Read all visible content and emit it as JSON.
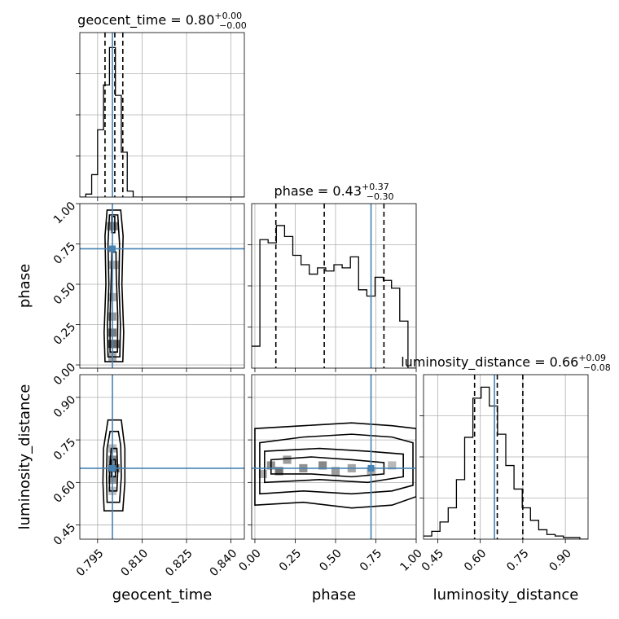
{
  "colors": {
    "truth": "#4682b4",
    "line": "#000000",
    "grid": "#b0b0b0"
  },
  "chart_data": {
    "type": "corner",
    "grid": true,
    "parameters": [
      "geocent_time",
      "phase",
      "luminosity_distance"
    ],
    "truth": {
      "geocent_time": 0.8,
      "phase": 0.72,
      "luminosity_distance": 0.65
    },
    "axes": {
      "geocent_time": {
        "range": [
          0.789,
          0.8445
        ],
        "ticks": [
          0.795,
          0.81,
          0.825,
          0.84
        ],
        "tick_labels": [
          "0.795",
          "0.810",
          "0.825",
          "0.840"
        ],
        "label": "geocent_time"
      },
      "phase": {
        "range": [
          -0.02,
          1.0
        ],
        "ticks": [
          0.0,
          0.25,
          0.5,
          0.75,
          1.0
        ],
        "tick_labels": [
          "0.00",
          "0.25",
          "0.50",
          "0.75",
          "1.00"
        ],
        "label": "phase"
      },
      "luminosity_distance": {
        "range": [
          0.4,
          0.98
        ],
        "ticks": [
          0.45,
          0.6,
          0.75,
          0.9
        ],
        "tick_labels": [
          "0.45",
          "0.60",
          "0.75",
          "0.90"
        ],
        "label": "luminosity_distance"
      }
    },
    "marginals": [
      {
        "param": "geocent_time",
        "title_main": "geocent_time = 0.80",
        "title_sup": "+0.00",
        "title_sub": "−0.00",
        "bin_edges": [
          0.789,
          0.791,
          0.793,
          0.795,
          0.797,
          0.799,
          0.801,
          0.803,
          0.805,
          0.807,
          0.809,
          0.811,
          0.813,
          0.815,
          0.817,
          0.819,
          0.821,
          0.823,
          0.825,
          0.827,
          0.829,
          0.831,
          0.833,
          0.835,
          0.837,
          0.839,
          0.841,
          0.843,
          0.8445
        ],
        "counts": [
          0,
          0.02,
          0.15,
          0.45,
          0.75,
          1.0,
          0.68,
          0.3,
          0.04,
          0,
          0,
          0,
          0,
          0,
          0,
          0,
          0,
          0,
          0,
          0,
          0,
          0,
          0,
          0,
          0,
          0,
          0,
          0
        ],
        "ymax": 1.1,
        "quantiles": [
          0.7975,
          0.8008,
          0.8035
        ]
      },
      {
        "param": "phase",
        "title_main": "phase = 0.43",
        "title_sup": "+0.37",
        "title_sub": "−0.30",
        "bin_edges": [
          -0.02,
          0.031,
          0.082,
          0.133,
          0.184,
          0.235,
          0.286,
          0.337,
          0.388,
          0.439,
          0.49,
          0.541,
          0.592,
          0.643,
          0.694,
          0.745,
          0.796,
          0.847,
          0.898,
          0.949,
          1.0
        ],
        "counts": [
          0.14,
          0.82,
          0.8,
          0.91,
          0.84,
          0.72,
          0.66,
          0.6,
          0.64,
          0.62,
          0.66,
          0.64,
          0.71,
          0.5,
          0.46,
          0.58,
          0.56,
          0.51,
          0.3,
          0.0
        ],
        "ymax": 1.05,
        "quantiles": [
          0.13,
          0.43,
          0.8
        ]
      },
      {
        "param": "luminosity_distance",
        "title_main": "luminosity_distance = 0.66",
        "title_sup": "+0.09",
        "title_sub": "−0.08",
        "bin_edges": [
          0.4,
          0.429,
          0.458,
          0.487,
          0.516,
          0.545,
          0.574,
          0.603,
          0.632,
          0.661,
          0.69,
          0.719,
          0.748,
          0.777,
          0.806,
          0.835,
          0.864,
          0.893,
          0.922,
          0.951,
          0.98
        ],
        "counts": [
          0.02,
          0.05,
          0.11,
          0.2,
          0.38,
          0.65,
          0.9,
          0.97,
          0.85,
          0.67,
          0.47,
          0.32,
          0.2,
          0.12,
          0.06,
          0.03,
          0.02,
          0.01,
          0.01,
          0
        ],
        "ymax": 1.05,
        "quantiles": [
          0.58,
          0.66,
          0.75
        ]
      }
    ],
    "joint_panels": [
      {
        "x": "geocent_time",
        "y": "phase",
        "density_cells": [
          {
            "x": 0.7995,
            "y": 0.86,
            "v": 0.55
          },
          {
            "x": 0.8005,
            "y": 0.86,
            "v": 0.6
          },
          {
            "x": 0.8,
            "y": 0.62,
            "v": 0.45
          },
          {
            "x": 0.801,
            "y": 0.62,
            "v": 0.4
          },
          {
            "x": 0.8,
            "y": 0.42,
            "v": 0.4
          },
          {
            "x": 0.8,
            "y": 0.3,
            "v": 0.5
          },
          {
            "x": 0.8,
            "y": 0.2,
            "v": 0.65
          },
          {
            "x": 0.8,
            "y": 0.13,
            "v": 0.85
          },
          {
            "x": 0.801,
            "y": 0.13,
            "v": 0.75
          },
          {
            "x": 0.8,
            "y": 0.05,
            "v": 0.45
          }
        ],
        "contours": [
          [
            [
              0.7975,
              0.02
            ],
            [
              0.8035,
              0.02
            ],
            [
              0.8038,
              0.2
            ],
            [
              0.8032,
              0.5
            ],
            [
              0.8036,
              0.8
            ],
            [
              0.8028,
              0.96
            ],
            [
              0.7982,
              0.96
            ],
            [
              0.7975,
              0.8
            ],
            [
              0.7978,
              0.5
            ],
            [
              0.7972,
              0.2
            ]
          ],
          [
            [
              0.7985,
              0.05
            ],
            [
              0.8025,
              0.05
            ],
            [
              0.8027,
              0.25
            ],
            [
              0.8022,
              0.5
            ],
            [
              0.8024,
              0.75
            ],
            [
              0.8018,
              0.93
            ],
            [
              0.799,
              0.93
            ],
            [
              0.7985,
              0.75
            ],
            [
              0.7988,
              0.5
            ],
            [
              0.7983,
              0.25
            ]
          ],
          [
            [
              0.7992,
              0.08
            ],
            [
              0.8017,
              0.08
            ],
            [
              0.8018,
              0.3
            ],
            [
              0.8013,
              0.55
            ],
            [
              0.8012,
              0.7
            ],
            [
              0.7998,
              0.7
            ],
            [
              0.7996,
              0.55
            ],
            [
              0.7992,
              0.3
            ]
          ],
          [
            [
              0.7998,
              0.82
            ],
            [
              0.8008,
              0.82
            ],
            [
              0.8008,
              0.92
            ],
            [
              0.7998,
              0.92
            ]
          ]
        ]
      },
      {
        "x": "geocent_time",
        "y": "luminosity_distance",
        "density_cells": [
          {
            "x": 0.8,
            "y": 0.72,
            "v": 0.35
          },
          {
            "x": 0.8,
            "y": 0.68,
            "v": 0.6
          },
          {
            "x": 0.8,
            "y": 0.65,
            "v": 0.8
          },
          {
            "x": 0.801,
            "y": 0.65,
            "v": 0.7
          },
          {
            "x": 0.8,
            "y": 0.61,
            "v": 0.55
          },
          {
            "x": 0.8,
            "y": 0.57,
            "v": 0.3
          }
        ],
        "contours": [
          [
            [
              0.7972,
              0.5
            ],
            [
              0.8035,
              0.5
            ],
            [
              0.8042,
              0.6
            ],
            [
              0.8042,
              0.72
            ],
            [
              0.803,
              0.82
            ],
            [
              0.7985,
              0.82
            ],
            [
              0.797,
              0.72
            ],
            [
              0.7968,
              0.6
            ]
          ],
          [
            [
              0.7982,
              0.53
            ],
            [
              0.8024,
              0.53
            ],
            [
              0.803,
              0.62
            ],
            [
              0.8028,
              0.73
            ],
            [
              0.802,
              0.78
            ],
            [
              0.7992,
              0.78
            ],
            [
              0.7982,
              0.72
            ],
            [
              0.798,
              0.62
            ]
          ],
          [
            [
              0.799,
              0.57
            ],
            [
              0.8015,
              0.57
            ],
            [
              0.8018,
              0.64
            ],
            [
              0.8015,
              0.72
            ],
            [
              0.7996,
              0.72
            ],
            [
              0.799,
              0.64
            ]
          ],
          [
            [
              0.7996,
              0.62
            ],
            [
              0.801,
              0.62
            ],
            [
              0.801,
              0.68
            ],
            [
              0.7996,
              0.68
            ]
          ]
        ]
      },
      {
        "x": "phase",
        "y": "luminosity_distance",
        "density_cells": [
          {
            "x": 0.1,
            "y": 0.66,
            "v": 0.55
          },
          {
            "x": 0.15,
            "y": 0.64,
            "v": 0.7
          },
          {
            "x": 0.2,
            "y": 0.68,
            "v": 0.5
          },
          {
            "x": 0.3,
            "y": 0.65,
            "v": 0.55
          },
          {
            "x": 0.42,
            "y": 0.66,
            "v": 0.6
          },
          {
            "x": 0.5,
            "y": 0.64,
            "v": 0.5
          },
          {
            "x": 0.6,
            "y": 0.65,
            "v": 0.45
          },
          {
            "x": 0.72,
            "y": 0.64,
            "v": 0.4
          },
          {
            "x": 0.85,
            "y": 0.66,
            "v": 0.35
          },
          {
            "x": 0.05,
            "y": 0.63,
            "v": 0.4
          }
        ],
        "contours": [
          [
            [
              0.0,
              0.52
            ],
            [
              0.3,
              0.53
            ],
            [
              0.6,
              0.51
            ],
            [
              0.85,
              0.52
            ],
            [
              1.0,
              0.55
            ],
            [
              1.0,
              0.79
            ],
            [
              0.85,
              0.8
            ],
            [
              0.6,
              0.81
            ],
            [
              0.3,
              0.8
            ],
            [
              0.0,
              0.79
            ]
          ],
          [
            [
              0.03,
              0.56
            ],
            [
              0.3,
              0.57
            ],
            [
              0.6,
              0.56
            ],
            [
              0.85,
              0.57
            ],
            [
              0.98,
              0.59
            ],
            [
              0.98,
              0.74
            ],
            [
              0.85,
              0.76
            ],
            [
              0.6,
              0.77
            ],
            [
              0.3,
              0.76
            ],
            [
              0.03,
              0.74
            ]
          ],
          [
            [
              0.06,
              0.6
            ],
            [
              0.4,
              0.61
            ],
            [
              0.7,
              0.6
            ],
            [
              0.92,
              0.62
            ],
            [
              0.92,
              0.7
            ],
            [
              0.7,
              0.71
            ],
            [
              0.4,
              0.72
            ],
            [
              0.06,
              0.71
            ]
          ],
          [
            [
              0.1,
              0.63
            ],
            [
              0.35,
              0.63
            ],
            [
              0.6,
              0.62
            ],
            [
              0.8,
              0.63
            ],
            [
              0.8,
              0.67
            ],
            [
              0.6,
              0.68
            ],
            [
              0.35,
              0.69
            ],
            [
              0.1,
              0.68
            ]
          ]
        ]
      }
    ]
  }
}
